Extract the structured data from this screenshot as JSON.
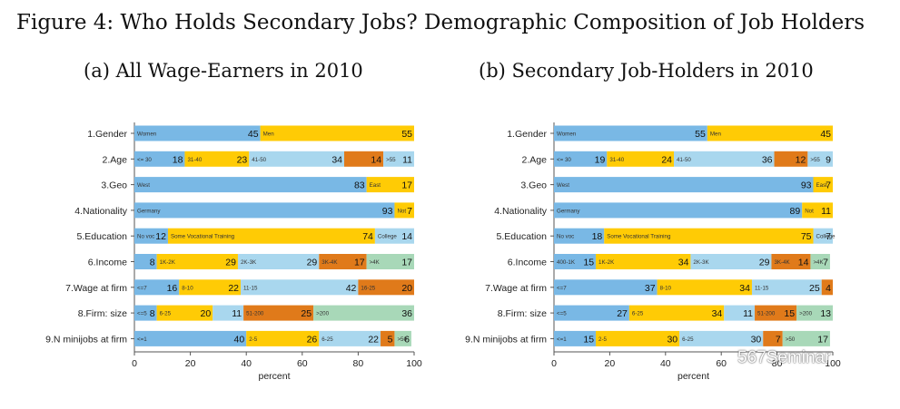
{
  "figure_title": "Figure 4: Who Holds Secondary Jobs? Demographic Composition of Job Holders",
  "watermark": "567Seminar",
  "colors": {
    "blue": "#79b8e5",
    "lightblue": "#a9d7ee",
    "yellow": "#ffcb05",
    "orange": "#e07a1a",
    "green": "#a8d8b8",
    "plot_bg": "#ffffff",
    "axis": "#555555"
  },
  "chart_data": [
    {
      "type": "bar",
      "stacked": "horizontal-100%",
      "title": "(a) All Wage-Earners in 2010",
      "xlabel": "percent",
      "ylabel": "",
      "xlim": [
        0,
        100
      ],
      "xticks": [
        "0",
        "20",
        "40",
        "60",
        "80",
        "100"
      ],
      "categories": [
        "1.Gender",
        "2.Age",
        "3.Geo",
        "4.Nationality",
        "5.Education",
        "6.Income",
        "7.Wage at firm",
        "8.Firm: size",
        "9.N minijobs at firm"
      ],
      "rows": [
        {
          "label": "1.Gender",
          "segments": [
            {
              "name": "Women",
              "value": 45,
              "color": "blue"
            },
            {
              "name": "Men",
              "value": 55,
              "color": "yellow"
            }
          ]
        },
        {
          "label": "2.Age",
          "segments": [
            {
              "name": "<= 30",
              "value": 18,
              "color": "blue"
            },
            {
              "name": "31-40",
              "value": 23,
              "color": "yellow"
            },
            {
              "name": "41-50",
              "value": 34,
              "color": "lightblue"
            },
            {
              "name": "",
              "value": 14,
              "color": "orange"
            },
            {
              "name": ">55",
              "value": 11,
              "color": "lightblue"
            }
          ]
        },
        {
          "label": "3.Geo",
          "segments": [
            {
              "name": "West",
              "value": 83,
              "color": "blue"
            },
            {
              "name": "East",
              "value": 17,
              "color": "yellow"
            }
          ]
        },
        {
          "label": "4.Nationality",
          "segments": [
            {
              "name": "Germany",
              "value": 93,
              "color": "blue"
            },
            {
              "name": "Not",
              "value": 7,
              "color": "yellow"
            }
          ]
        },
        {
          "label": "5.Education",
          "segments": [
            {
              "name": "No voc",
              "value": 12,
              "color": "blue"
            },
            {
              "name": "Some Vocational Training",
              "value": 74,
              "color": "yellow"
            },
            {
              "name": "College",
              "value": 14,
              "color": "lightblue"
            }
          ]
        },
        {
          "label": "6.Income",
          "segments": [
            {
              "name": "",
              "value": 8,
              "color": "blue"
            },
            {
              "name": "1K-2K",
              "value": 29,
              "color": "yellow"
            },
            {
              "name": "2K-3K",
              "value": 29,
              "color": "lightblue"
            },
            {
              "name": "3K-4K",
              "value": 17,
              "color": "orange"
            },
            {
              "name": ">4K",
              "value": 17,
              "color": "green"
            }
          ]
        },
        {
          "label": "7.Wage at firm",
          "segments": [
            {
              "name": "<=7",
              "value": 16,
              "color": "blue"
            },
            {
              "name": "8-10",
              "value": 22,
              "color": "yellow"
            },
            {
              "name": "11-15",
              "value": 42,
              "color": "lightblue"
            },
            {
              "name": "16-25",
              "value": 20,
              "color": "orange"
            }
          ]
        },
        {
          "label": "8.Firm: size",
          "segments": [
            {
              "name": "<=5",
              "value": 8,
              "color": "blue"
            },
            {
              "name": "6-25",
              "value": 20,
              "color": "yellow"
            },
            {
              "name": "",
              "value": 11,
              "color": "lightblue"
            },
            {
              "name": "51-200",
              "value": 25,
              "color": "orange"
            },
            {
              "name": ">200",
              "value": 36,
              "color": "green"
            }
          ]
        },
        {
          "label": "9.N minijobs at firm",
          "segments": [
            {
              "name": "<=1",
              "value": 40,
              "color": "blue"
            },
            {
              "name": "2-5",
              "value": 26,
              "color": "yellow"
            },
            {
              "name": "6-25",
              "value": 22,
              "color": "lightblue"
            },
            {
              "name": "",
              "value": 5,
              "color": "orange"
            },
            {
              "name": ">50",
              "value": 6,
              "color": "green"
            }
          ]
        }
      ]
    },
    {
      "type": "bar",
      "stacked": "horizontal-100%",
      "title": "(b) Secondary Job-Holders in 2010",
      "xlabel": "percent",
      "ylabel": "",
      "xlim": [
        0,
        100
      ],
      "xticks": [
        "0",
        "20",
        "40",
        "60",
        "80",
        "100"
      ],
      "categories": [
        "1.Gender",
        "2.Age",
        "3.Geo",
        "4.Nationality",
        "5.Education",
        "6.Income",
        "7.Wage at firm",
        "8.Firm: size",
        "9.N minijobs at firm"
      ],
      "rows": [
        {
          "label": "1.Gender",
          "segments": [
            {
              "name": "Women",
              "value": 55,
              "color": "blue"
            },
            {
              "name": "Men",
              "value": 45,
              "color": "yellow"
            }
          ]
        },
        {
          "label": "2.Age",
          "segments": [
            {
              "name": "<= 30",
              "value": 19,
              "color": "blue"
            },
            {
              "name": "31-40",
              "value": 24,
              "color": "yellow"
            },
            {
              "name": "41-50",
              "value": 36,
              "color": "lightblue"
            },
            {
              "name": "",
              "value": 12,
              "color": "orange"
            },
            {
              "name": ">55",
              "value": 9,
              "color": "lightblue"
            }
          ]
        },
        {
          "label": "3.Geo",
          "segments": [
            {
              "name": "West",
              "value": 93,
              "color": "blue"
            },
            {
              "name": "East",
              "value": 7,
              "color": "yellow"
            }
          ]
        },
        {
          "label": "4.Nationality",
          "segments": [
            {
              "name": "Germany",
              "value": 89,
              "color": "blue"
            },
            {
              "name": "Not",
              "value": 11,
              "color": "yellow"
            }
          ]
        },
        {
          "label": "5.Education",
          "segments": [
            {
              "name": "No voc",
              "value": 18,
              "color": "blue"
            },
            {
              "name": "Some Vocational Training",
              "value": 75,
              "color": "yellow"
            },
            {
              "name": "College",
              "value": 7,
              "color": "lightblue"
            }
          ]
        },
        {
          "label": "6.Income",
          "segments": [
            {
              "name": "400-1K",
              "value": 15,
              "color": "blue"
            },
            {
              "name": "1K-2K",
              "value": 34,
              "color": "yellow"
            },
            {
              "name": "2K-3K",
              "value": 29,
              "color": "lightblue"
            },
            {
              "name": "3K-4K",
              "value": 14,
              "color": "orange"
            },
            {
              "name": ">4K",
              "value": 7,
              "color": "green"
            }
          ]
        },
        {
          "label": "7.Wage at firm",
          "segments": [
            {
              "name": "<=7",
              "value": 37,
              "color": "blue"
            },
            {
              "name": "8-10",
              "value": 34,
              "color": "yellow"
            },
            {
              "name": "11-15",
              "value": 25,
              "color": "lightblue"
            },
            {
              "name": "",
              "value": 4,
              "color": "orange"
            }
          ]
        },
        {
          "label": "8.Firm: size",
          "segments": [
            {
              "name": "<=5",
              "value": 27,
              "color": "blue"
            },
            {
              "name": "6-25",
              "value": 34,
              "color": "yellow"
            },
            {
              "name": "",
              "value": 11,
              "color": "lightblue"
            },
            {
              "name": "51-200",
              "value": 15,
              "color": "orange"
            },
            {
              "name": ">200",
              "value": 13,
              "color": "green"
            }
          ]
        },
        {
          "label": "9.N minijobs at firm",
          "segments": [
            {
              "name": "<=1",
              "value": 15,
              "color": "blue"
            },
            {
              "name": "2-5",
              "value": 30,
              "color": "yellow"
            },
            {
              "name": "6-25",
              "value": 30,
              "color": "lightblue"
            },
            {
              "name": "",
              "value": 7,
              "color": "orange"
            },
            {
              "name": ">50",
              "value": 17,
              "color": "green"
            }
          ]
        }
      ]
    }
  ]
}
